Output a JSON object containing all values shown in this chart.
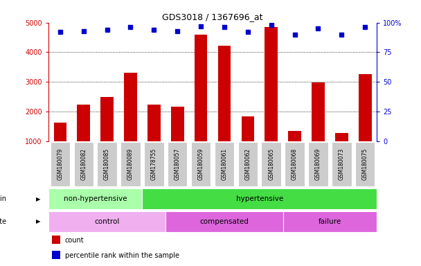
{
  "title": "GDS3018 / 1367696_at",
  "samples": [
    "GSM180079",
    "GSM180082",
    "GSM180085",
    "GSM180089",
    "GSM178755",
    "GSM180057",
    "GSM180059",
    "GSM180061",
    "GSM180062",
    "GSM180065",
    "GSM180068",
    "GSM180069",
    "GSM180073",
    "GSM180075"
  ],
  "counts": [
    1620,
    2230,
    2480,
    3300,
    2230,
    2170,
    4600,
    4230,
    1820,
    4850,
    1330,
    2980,
    1260,
    3270
  ],
  "percentiles": [
    92,
    93,
    94,
    96,
    94,
    93,
    97,
    96,
    92,
    98,
    90,
    95,
    90,
    96
  ],
  "ylim_left": [
    1000,
    5000
  ],
  "ylim_right": [
    0,
    100
  ],
  "yticks_left": [
    1000,
    2000,
    3000,
    4000,
    5000
  ],
  "yticks_right": [
    0,
    25,
    50,
    75,
    100
  ],
  "bar_color": "#cc0000",
  "dot_color": "#0000cc",
  "grid_color": "#000000",
  "bg_color": "#ffffff",
  "strain_data": [
    {
      "text": "non-hypertensive",
      "start": 0,
      "end": 4,
      "color": "#aaffaa"
    },
    {
      "text": "hypertensive",
      "start": 4,
      "end": 14,
      "color": "#44dd44"
    }
  ],
  "disease_data": [
    {
      "text": "control",
      "start": 0,
      "end": 5,
      "color": "#f0b0f0"
    },
    {
      "text": "compensated",
      "start": 5,
      "end": 10,
      "color": "#dd66dd"
    },
    {
      "text": "failure",
      "start": 10,
      "end": 14,
      "color": "#dd66dd"
    }
  ],
  "legend_items": [
    {
      "color": "#cc0000",
      "label": "count"
    },
    {
      "color": "#0000cc",
      "label": "percentile rank within the sample"
    }
  ],
  "tick_bg": "#cccccc",
  "grid_lines_at": [
    2000,
    3000,
    4000
  ]
}
